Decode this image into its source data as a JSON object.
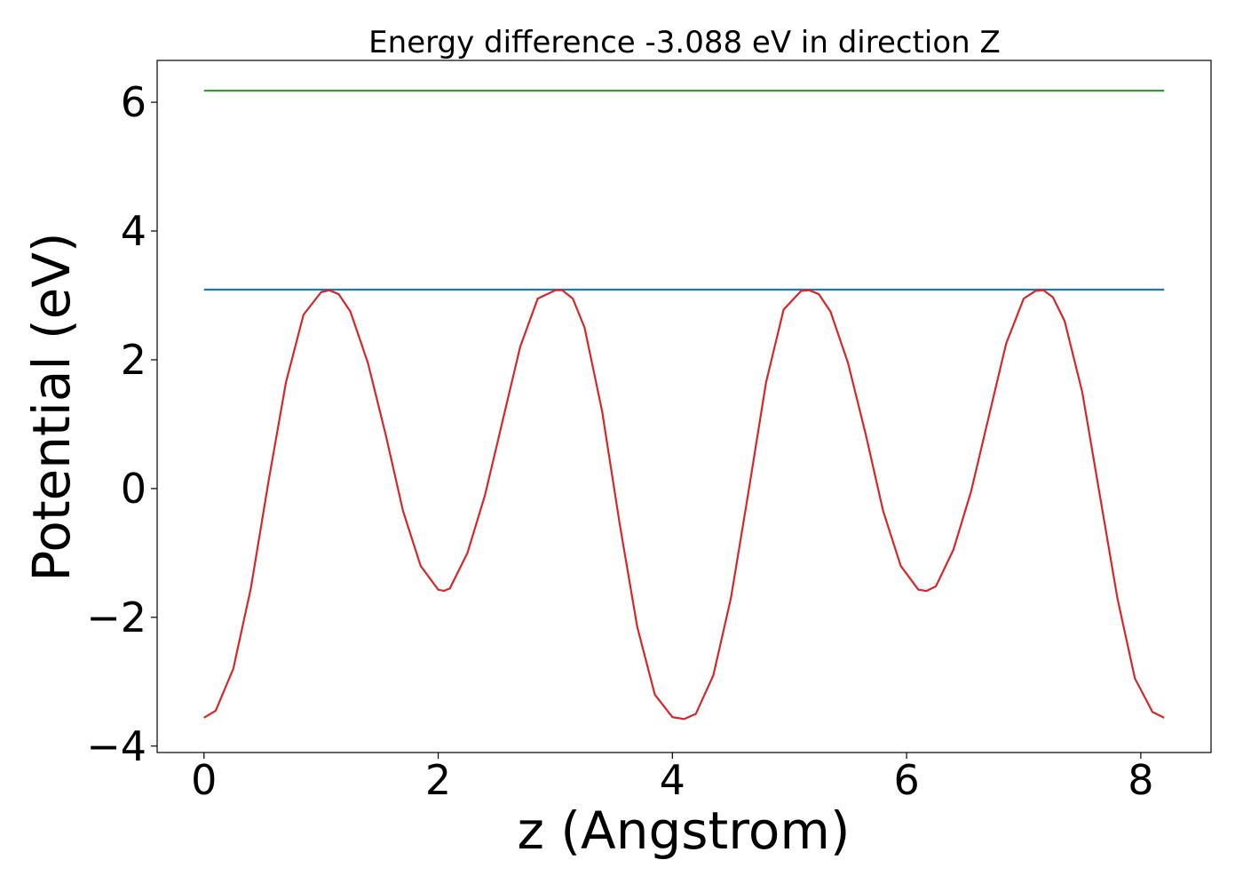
{
  "chart_data": {
    "type": "line",
    "title": "Energy difference -3.088 eV in direction Z",
    "xlabel": "z (Angstrom)",
    "ylabel": "Potential (eV)",
    "xlim": [
      -0.4,
      8.6
    ],
    "ylim": [
      -4.1,
      6.65
    ],
    "xticks": [
      0,
      2,
      4,
      6,
      8
    ],
    "xtick_labels": [
      "0",
      "2",
      "4",
      "6",
      "8"
    ],
    "yticks": [
      -4,
      -2,
      0,
      2,
      4,
      6
    ],
    "ytick_labels": [
      "−4",
      "−2",
      "0",
      "2",
      "4",
      "6"
    ],
    "grid": false,
    "series": [
      {
        "color": "#2ca02c",
        "x": [
          0,
          8.2
        ],
        "y": [
          6.18,
          6.18
        ]
      },
      {
        "color": "#1f77b4",
        "x": [
          0,
          8.2
        ],
        "y": [
          3.09,
          3.09
        ]
      },
      {
        "color": "#d62728",
        "x": [
          0,
          0.1,
          0.25,
          0.4,
          0.55,
          0.7,
          0.85,
          1.0,
          1.07,
          1.15,
          1.25,
          1.4,
          1.55,
          1.7,
          1.85,
          2.0,
          2.05,
          2.1,
          2.25,
          2.4,
          2.55,
          2.7,
          2.85,
          3.0,
          3.06,
          3.15,
          3.25,
          3.4,
          3.55,
          3.7,
          3.85,
          4.0,
          4.1,
          4.2,
          4.35,
          4.5,
          4.65,
          4.8,
          4.95,
          5.1,
          5.17,
          5.25,
          5.35,
          5.5,
          5.65,
          5.8,
          5.95,
          6.1,
          6.17,
          6.25,
          6.4,
          6.55,
          6.7,
          6.85,
          7.0,
          7.1,
          7.17,
          7.25,
          7.35,
          7.5,
          7.65,
          7.8,
          7.95,
          8.1,
          8.2
        ],
        "y": [
          -3.56,
          -3.45,
          -2.8,
          -1.55,
          0.1,
          1.65,
          2.7,
          3.05,
          3.08,
          3.02,
          2.75,
          1.95,
          0.85,
          -0.35,
          -1.2,
          -1.57,
          -1.59,
          -1.55,
          -1.0,
          -0.1,
          1.05,
          2.2,
          2.95,
          3.08,
          3.08,
          2.95,
          2.5,
          1.2,
          -0.55,
          -2.15,
          -3.2,
          -3.55,
          -3.58,
          -3.5,
          -2.9,
          -1.7,
          -0.05,
          1.65,
          2.78,
          3.07,
          3.08,
          3.02,
          2.75,
          1.95,
          0.85,
          -0.35,
          -1.2,
          -1.57,
          -1.59,
          -1.52,
          -0.95,
          -0.05,
          1.1,
          2.25,
          2.95,
          3.07,
          3.08,
          2.97,
          2.6,
          1.5,
          -0.1,
          -1.7,
          -2.95,
          -3.47,
          -3.56
        ]
      }
    ]
  }
}
